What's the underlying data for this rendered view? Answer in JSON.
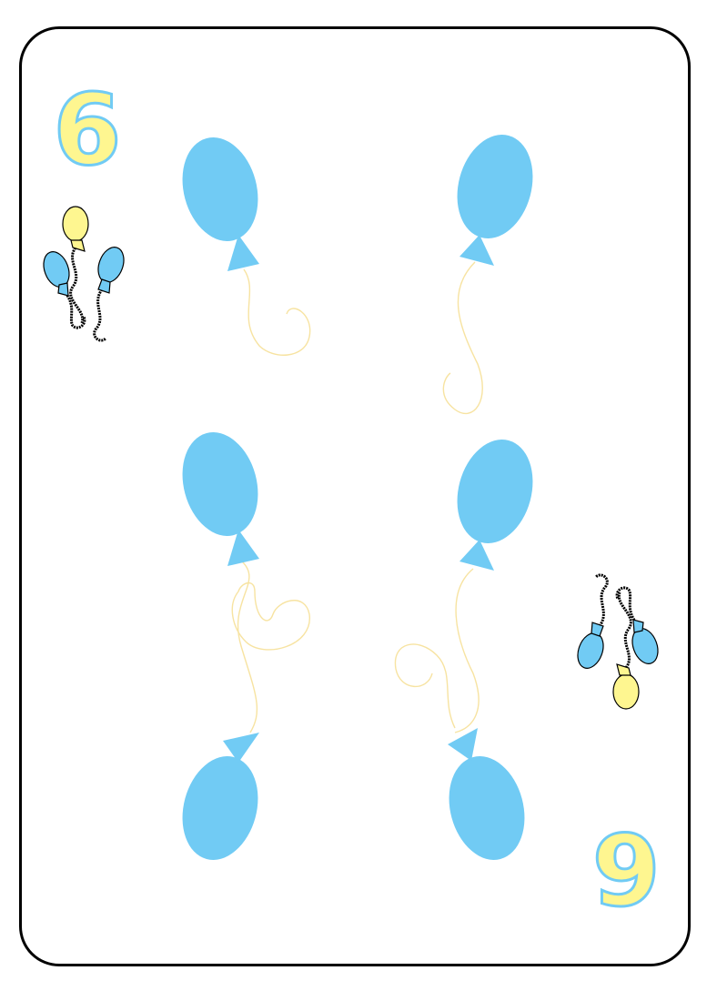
{
  "card": {
    "rank": "6",
    "suit": "balloons",
    "pip_count": 6
  },
  "colors": {
    "balloon_blue": "#71cbf4",
    "balloon_yellow": "#fef690",
    "string_yellow": "#f7e3a1",
    "outline": "#000000",
    "background": "#ffffff"
  }
}
